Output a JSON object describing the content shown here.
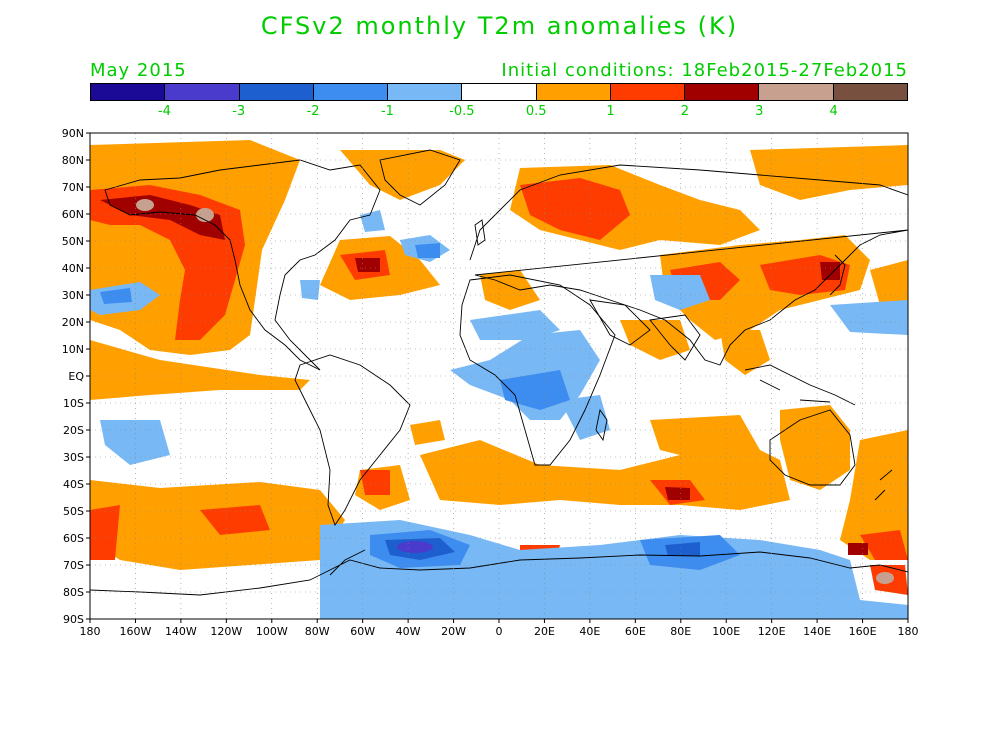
{
  "title": "CFSv2 monthly T2m anomalies (K)",
  "month": "May 2015",
  "initial_conditions": "Initial conditions: 18Feb2015-27Feb2015",
  "colorbar": {
    "colors": [
      "#1a0a96",
      "#4a3bcc",
      "#1e5fd0",
      "#3d8df0",
      "#78b8f5",
      "#ffffff",
      "#ffa000",
      "#ff3c00",
      "#a00000",
      "#c8a090",
      "#785040"
    ],
    "labels": [
      "-4",
      "-3",
      "-2",
      "-1",
      "-0.5",
      "0.5",
      "1",
      "2",
      "3",
      "4"
    ]
  },
  "axes": {
    "lat_labels": [
      "90N",
      "80N",
      "70N",
      "60N",
      "50N",
      "40N",
      "30N",
      "20N",
      "10N",
      "EQ",
      "10S",
      "20S",
      "30S",
      "40S",
      "50S",
      "60S",
      "70S",
      "80S",
      "90S"
    ],
    "lon_labels": [
      "180",
      "160W",
      "140W",
      "120W",
      "100W",
      "80W",
      "60W",
      "40W",
      "20W",
      "0",
      "20E",
      "40E",
      "60E",
      "80E",
      "100E",
      "120E",
      "140E",
      "160E",
      "180"
    ]
  },
  "icons": {
    "colorbar": "colorbar-legend",
    "map": "world-map-anomaly"
  }
}
